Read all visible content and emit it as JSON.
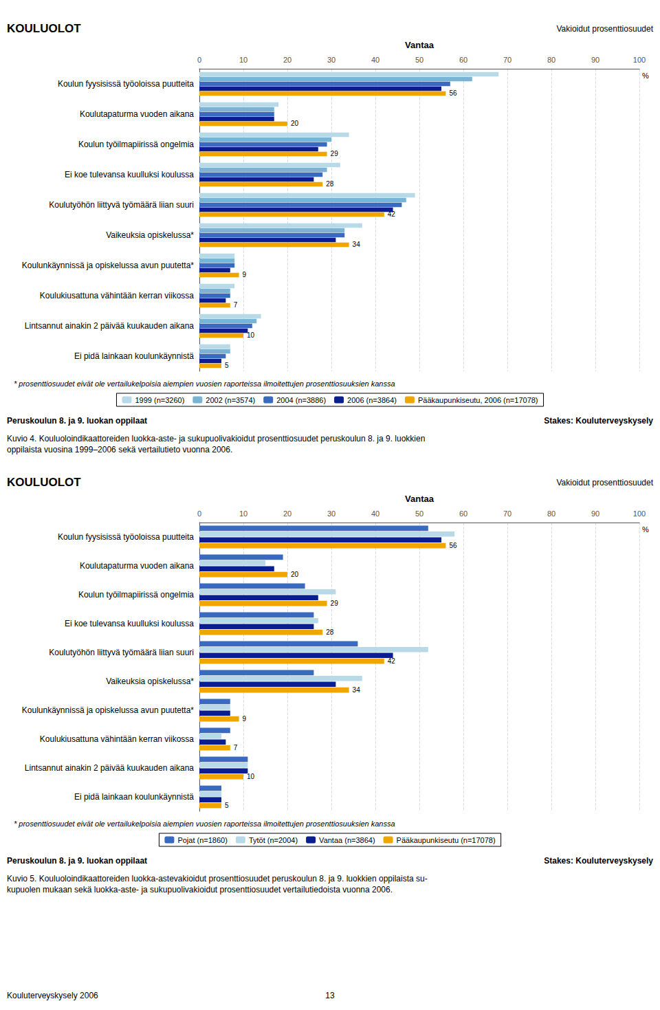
{
  "chart_data": [
    {
      "type": "bar",
      "orientation": "horizontal",
      "title": "KOULUOLOT",
      "subtitle": "Vakioidut prosenttiosuudet",
      "x_label": "Vantaa",
      "categories": [
        "Koulun fyysisissä työoloissa puutteita",
        "Koulutapaturma vuoden aikana",
        "Koulun työilmapiirissä ongelmia",
        "Ei koe tulevansa kuulluksi koulussa",
        "Koulutyöhön liittyvä työmäärä liian suuri",
        "Vaikeuksia opiskelussa*",
        "Koulunkäynnissä ja opiskelussa avun puutetta*",
        "Koulukiusattuna vähintään kerran viikossa",
        "Lintsannut ainakin 2 päivää kuukauden aikana",
        "Ei pidä lainkaan koulunkäynnistä"
      ],
      "series": [
        {
          "name": "1999 (n=3260)",
          "color": "#b8d9e8",
          "values": [
            68,
            18,
            34,
            32,
            49,
            37,
            8,
            8,
            14,
            7
          ]
        },
        {
          "name": "2002 (n=3574)",
          "color": "#7ab4d4",
          "values": [
            62,
            17,
            30,
            29,
            47,
            33,
            8,
            7,
            13,
            7
          ]
        },
        {
          "name": "2004 (n=3886)",
          "color": "#3a6abf",
          "values": [
            57,
            17,
            29,
            28,
            46,
            33,
            8,
            7,
            12,
            6
          ]
        },
        {
          "name": "2006 (n=3864)",
          "color": "#0a1f8f",
          "values": [
            55,
            17,
            27,
            26,
            44,
            31,
            7,
            6,
            11,
            5
          ]
        },
        {
          "name": "Pääkaupunkiseutu, 2006 (n=17078)",
          "color": "#f0a500",
          "values": [
            56,
            20,
            29,
            28,
            42,
            34,
            9,
            7,
            10,
            5
          ],
          "data_labels": true
        }
      ],
      "xlim": [
        0,
        100
      ],
      "xticks": [
        0,
        10,
        20,
        30,
        40,
        50,
        60,
        70,
        80,
        90,
        100
      ],
      "grid": true,
      "legend": "bottom",
      "annotations": {
        "unit": "%",
        "footnote": "* prosenttiosuudet eivät ole vertailukelpoisia aiempien vuosien raporteissa ilmoitettujen prosenttiosuuksien kanssa",
        "footer_left": "Peruskoulun 8. ja 9. luokan oppilaat",
        "footer_right": "Stakes: Kouluterveyskysely",
        "caption": "Kuvio 4. Kouluoloindikaattoreiden luokka-aste- ja sukupuolivakioidut prosenttiosuudet peruskoulun 8. ja 9. luokkien\noppilaista vuosina 1999–2006 sekä vertailutieto vuonna 2006."
      }
    },
    {
      "type": "bar",
      "orientation": "horizontal",
      "title": "KOULUOLOT",
      "subtitle": "Vakioidut prosenttiosuudet",
      "x_label": "Vantaa",
      "categories": [
        "Koulun fyysisissä työoloissa puutteita",
        "Koulutapaturma vuoden aikana",
        "Koulun työilmapiirissä ongelmia",
        "Ei koe tulevansa kuulluksi koulussa",
        "Koulutyöhön liittyvä työmäärä liian suuri",
        "Vaikeuksia opiskelussa*",
        "Koulunkäynnissä ja opiskelussa avun puutetta*",
        "Koulukiusattuna vähintään kerran viikossa",
        "Lintsannut ainakin 2 päivää kuukauden aikana",
        "Ei pidä lainkaan koulunkäynnistä"
      ],
      "series": [
        {
          "name": "Pojat (n=1860)",
          "color": "#3a6abf",
          "values": [
            52,
            19,
            24,
            26,
            36,
            26,
            7,
            7,
            11,
            5
          ]
        },
        {
          "name": "Tytöt (n=2004)",
          "color": "#b8d9e8",
          "values": [
            58,
            15,
            31,
            27,
            52,
            37,
            7,
            5,
            11,
            5
          ]
        },
        {
          "name": "Vantaa (n=3864)",
          "color": "#0a1f8f",
          "values": [
            55,
            17,
            27,
            26,
            44,
            31,
            7,
            6,
            11,
            5
          ]
        },
        {
          "name": "Pääkaupunkiseutu (n=17078)",
          "color": "#f0a500",
          "values": [
            56,
            20,
            29,
            28,
            42,
            34,
            9,
            7,
            10,
            5
          ],
          "data_labels": true
        }
      ],
      "xlim": [
        0,
        100
      ],
      "xticks": [
        0,
        10,
        20,
        30,
        40,
        50,
        60,
        70,
        80,
        90,
        100
      ],
      "grid": true,
      "legend": "bottom",
      "annotations": {
        "unit": "%",
        "footnote": "* prosenttiosuudet eivät ole vertailukelpoisia aiempien vuosien raporteissa ilmoitettujen prosenttiosuuksien kanssa",
        "footer_left": "Peruskoulun 8. ja 9. luokan oppilaat",
        "footer_right": "Stakes: Kouluterveyskysely",
        "caption": "Kuvio 5. Kouluoloindikaattoreiden luokka-astevakioidut prosenttiosuudet peruskoulun 8. ja 9. luokkien oppilaista su-\nkupuolen mukaan sekä luokka-aste- ja sukupuolivakioidut prosenttiosuudet vertailutiedoista vuonna 2006.",
        "page_footer_left": "Kouluterveyskysely 2006",
        "page_footer_center": "13"
      }
    }
  ]
}
